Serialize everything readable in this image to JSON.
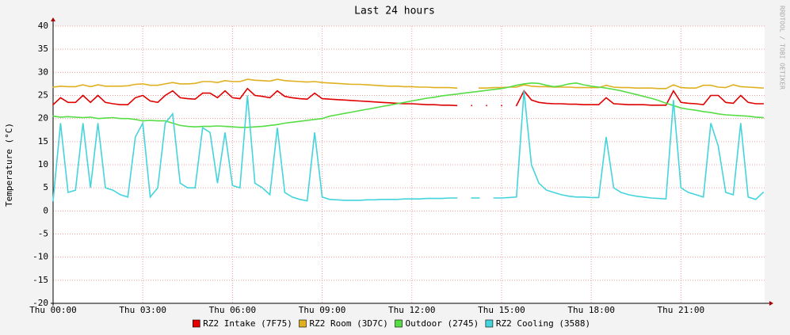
{
  "chart_data": {
    "type": "line",
    "title": "Last 24 hours",
    "y_label": "Temperature (°C)",
    "side_text": "RRDTOOL / TOBI OETIKER",
    "x": [
      0,
      0.25,
      0.5,
      0.75,
      1,
      1.25,
      1.5,
      1.75,
      2,
      2.25,
      2.5,
      2.75,
      3,
      3.25,
      3.5,
      3.75,
      4,
      4.25,
      4.5,
      4.75,
      5,
      5.25,
      5.5,
      5.75,
      6,
      6.25,
      6.5,
      6.75,
      7,
      7.25,
      7.5,
      7.75,
      8,
      8.25,
      8.5,
      8.75,
      9,
      9.25,
      9.5,
      9.75,
      10,
      10.25,
      10.5,
      10.75,
      11,
      11.25,
      11.5,
      11.75,
      12,
      12.25,
      12.5,
      12.75,
      13,
      13.25,
      13.5,
      13.75,
      14,
      14.25,
      14.5,
      14.75,
      15,
      15.25,
      15.5,
      15.75,
      16,
      16.25,
      16.5,
      16.75,
      17,
      17.25,
      17.5,
      17.75,
      18,
      18.25,
      18.5,
      18.75,
      19,
      19.25,
      19.5,
      19.75,
      20,
      20.25,
      20.5,
      20.75,
      21,
      21.25,
      21.5,
      21.75,
      22,
      22.25,
      22.5,
      22.75,
      23,
      23.25,
      23.5,
      23.75
    ],
    "xlim": [
      0,
      23.8
    ],
    "xticks": [
      {
        "value": 0,
        "label": "Thu 00:00"
      },
      {
        "value": 3,
        "label": "Thu 03:00"
      },
      {
        "value": 6,
        "label": "Thu 06:00"
      },
      {
        "value": 9,
        "label": "Thu 09:00"
      },
      {
        "value": 12,
        "label": "Thu 12:00"
      },
      {
        "value": 15,
        "label": "Thu 15:00"
      },
      {
        "value": 18,
        "label": "Thu 18:00"
      },
      {
        "value": 21,
        "label": "Thu 21:00"
      }
    ],
    "ylim": [
      -20,
      40
    ],
    "yticks": [
      -20,
      -15,
      -10,
      -5,
      0,
      5,
      10,
      15,
      20,
      25,
      30,
      35,
      40
    ],
    "grid": true,
    "series": [
      {
        "name": "RZ2 Intake (7F75)",
        "color": "#e00000",
        "values": [
          23,
          24.5,
          23.5,
          23.5,
          25,
          23.5,
          25,
          23.5,
          23.2,
          23,
          23,
          24.5,
          25,
          23.8,
          23.5,
          25,
          26,
          24.5,
          24.3,
          24.2,
          25.5,
          25.5,
          24.5,
          26,
          24.5,
          24.3,
          26.5,
          25,
          24.8,
          24.5,
          26,
          24.8,
          24.5,
          24.3,
          24.2,
          25.5,
          24.3,
          24.2,
          24.1,
          24,
          23.9,
          23.8,
          23.7,
          23.6,
          23.5,
          23.4,
          23.3,
          23.2,
          23.2,
          23.1,
          23,
          23,
          22.9,
          22.9,
          22.8,
          null,
          22.8,
          null,
          22.8,
          null,
          22.8,
          null,
          22.8,
          26,
          24,
          23.5,
          23.3,
          23.2,
          23.2,
          23.1,
          23.1,
          23,
          23,
          23,
          24.5,
          23.2,
          23.1,
          23,
          23,
          23,
          22.9,
          22.9,
          22.9,
          26,
          23.5,
          23.3,
          23.2,
          23,
          25,
          25,
          23.5,
          23.3,
          25,
          23.5,
          23.2,
          23.2
        ]
      },
      {
        "name": "RZ2 Room (3D7C)",
        "color": "#e0b020",
        "values": [
          26.8,
          27,
          26.9,
          26.9,
          27.3,
          26.9,
          27.3,
          27,
          27,
          27,
          27.1,
          27.4,
          27.5,
          27.2,
          27.2,
          27.5,
          27.8,
          27.5,
          27.5,
          27.6,
          28,
          28,
          27.8,
          28.2,
          28,
          28,
          28.5,
          28.3,
          28.2,
          28.1,
          28.5,
          28.2,
          28.1,
          28,
          27.9,
          28,
          27.8,
          27.7,
          27.6,
          27.5,
          27.4,
          27.4,
          27.3,
          27.2,
          27.1,
          27,
          27,
          26.9,
          26.9,
          26.8,
          26.8,
          26.7,
          26.7,
          26.7,
          26.6,
          null,
          null,
          26.6,
          26.6,
          26.7,
          26.7,
          26.8,
          26.8,
          27.3,
          27,
          26.9,
          26.9,
          26.8,
          26.8,
          26.8,
          26.7,
          26.7,
          26.7,
          26.7,
          27.2,
          26.8,
          26.7,
          26.7,
          26.6,
          26.6,
          26.6,
          26.5,
          26.5,
          27.3,
          26.7,
          26.6,
          26.6,
          27.2,
          27.2,
          26.8,
          26.7,
          27.3,
          26.9,
          26.8,
          26.7,
          26.6
        ]
      },
      {
        "name": "Outdoor (2745)",
        "color": "#55dd44",
        "values": [
          20.5,
          20.3,
          20.4,
          20.3,
          20.2,
          20.3,
          20,
          20.1,
          20.2,
          20,
          20,
          19.8,
          19.5,
          19.6,
          19.5,
          19.5,
          19,
          18.5,
          18.3,
          18.2,
          18.3,
          18.3,
          18.4,
          18.3,
          18.2,
          18.1,
          18.1,
          18.2,
          18.3,
          18.5,
          18.7,
          19,
          19.2,
          19.4,
          19.6,
          19.8,
          20,
          20.5,
          20.8,
          21.1,
          21.4,
          21.7,
          22,
          22.3,
          22.6,
          22.9,
          23.2,
          23.5,
          23.8,
          24.1,
          24.4,
          24.6,
          24.9,
          25.1,
          25.3,
          25.5,
          25.7,
          25.9,
          26.1,
          26.3,
          26.5,
          26.8,
          27.2,
          27.5,
          27.7,
          27.6,
          27.2,
          26.9,
          27.1,
          27.5,
          27.7,
          27.3,
          27,
          26.8,
          26.6,
          26.3,
          26,
          25.6,
          25.2,
          24.8,
          24.4,
          23.9,
          23.3,
          22.8,
          22.3,
          22,
          21.8,
          21.5,
          21.3,
          21,
          20.8,
          20.7,
          20.6,
          20.5,
          20.3,
          20.2
        ]
      },
      {
        "name": "RZ2 Cooling (3588)",
        "color": "#44d4dc",
        "values": [
          2.2,
          19,
          4,
          4.5,
          19,
          5,
          19,
          5,
          4.5,
          3.5,
          3,
          16,
          19,
          3,
          5,
          19,
          21,
          6,
          5,
          5,
          18,
          17,
          6,
          17,
          5.5,
          5,
          25,
          6,
          5,
          3.5,
          18,
          4,
          3,
          2.5,
          2.2,
          17,
          3,
          2.5,
          2.4,
          2.3,
          2.3,
          2.3,
          2.4,
          2.4,
          2.5,
          2.5,
          2.5,
          2.6,
          2.6,
          2.6,
          2.7,
          2.7,
          2.7,
          2.8,
          2.8,
          null,
          2.8,
          2.8,
          null,
          2.8,
          2.8,
          2.9,
          3,
          26,
          10,
          6,
          4.5,
          4,
          3.5,
          3.2,
          3,
          3,
          2.9,
          2.9,
          16,
          5,
          4,
          3.5,
          3.2,
          3,
          2.8,
          2.7,
          2.6,
          24,
          5,
          4,
          3.5,
          3,
          19,
          14,
          4,
          3.5,
          19,
          3,
          2.5,
          4
        ]
      }
    ]
  }
}
